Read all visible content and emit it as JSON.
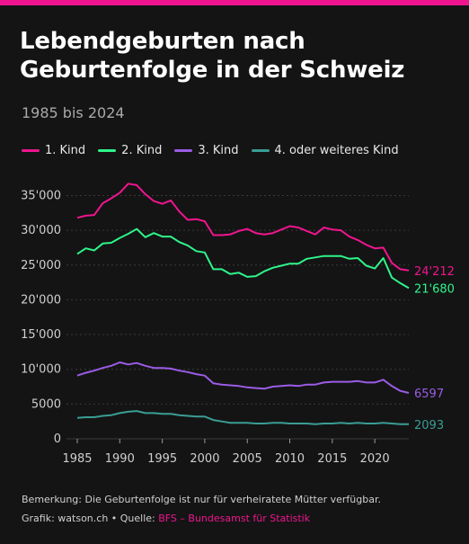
{
  "header": {
    "title": "Lebendgeburten nach Geburtenfolge in der Schweiz",
    "subtitle": "1985 bis 2024"
  },
  "colors": {
    "background": "#141414",
    "accent": "#f0158f",
    "grid": "#3a3a3a"
  },
  "footer": {
    "note": "Bemerkung: Die Geburtenfolge ist nur für verheiratete Mütter verfügbar.",
    "credit_prefix": "Grafik: watson.ch • Quelle: ",
    "source": "BFS – Bundesamst für Statistik"
  },
  "chart_data": {
    "type": "line",
    "title": "Lebendgeburten nach Geburtenfolge in der Schweiz",
    "subtitle": "1985 bis 2024",
    "xlabel": "",
    "ylabel": "",
    "xlim": [
      1985,
      2024
    ],
    "ylim": [
      0,
      37000
    ],
    "x_ticks": [
      1985,
      1990,
      1995,
      2000,
      2005,
      2010,
      2015,
      2020
    ],
    "y_ticks": [
      0,
      5000,
      10000,
      15000,
      20000,
      25000,
      30000,
      35000
    ],
    "y_tick_labels": [
      "0",
      "5000",
      "10'000",
      "15'000",
      "20'000",
      "25'000",
      "30'000",
      "35'000"
    ],
    "grid": "horizontal",
    "legend_position": "top",
    "x": [
      1985,
      1986,
      1987,
      1988,
      1989,
      1990,
      1991,
      1992,
      1993,
      1994,
      1995,
      1996,
      1997,
      1998,
      1999,
      2000,
      2001,
      2002,
      2003,
      2004,
      2005,
      2006,
      2007,
      2008,
      2009,
      2010,
      2011,
      2012,
      2013,
      2014,
      2015,
      2016,
      2017,
      2018,
      2019,
      2020,
      2021,
      2022,
      2023,
      2024
    ],
    "series": [
      {
        "name": "1. Kind",
        "color": "#f0158f",
        "end_label": "24'212",
        "values": [
          31800,
          32100,
          32200,
          33900,
          34600,
          35400,
          36700,
          36500,
          35200,
          34200,
          33800,
          34300,
          32700,
          31500,
          31600,
          31300,
          29300,
          29300,
          29400,
          29900,
          30200,
          29600,
          29400,
          29600,
          30100,
          30600,
          30400,
          29900,
          29400,
          30400,
          30100,
          30000,
          29100,
          28600,
          27900,
          27400,
          27500,
          25300,
          24400,
          24212
        ]
      },
      {
        "name": "2. Kind",
        "color": "#2ef58a",
        "end_label": "21'680",
        "values": [
          26600,
          27400,
          27100,
          28100,
          28200,
          28900,
          29500,
          30200,
          29000,
          29600,
          29100,
          29100,
          28300,
          27800,
          27000,
          26800,
          24400,
          24400,
          23700,
          23900,
          23300,
          23400,
          24100,
          24600,
          24900,
          25200,
          25200,
          25900,
          26100,
          26300,
          26300,
          26300,
          25900,
          26000,
          24900,
          24500,
          26000,
          23200,
          22400,
          21680
        ]
      },
      {
        "name": "3. Kind",
        "color": "#9b5ce6",
        "end_label": "6597",
        "values": [
          9100,
          9500,
          9800,
          10200,
          10500,
          11000,
          10700,
          10900,
          10500,
          10200,
          10200,
          10100,
          9800,
          9600,
          9300,
          9100,
          8000,
          7800,
          7700,
          7600,
          7400,
          7300,
          7200,
          7500,
          7600,
          7700,
          7600,
          7800,
          7800,
          8100,
          8200,
          8200,
          8200,
          8300,
          8100,
          8100,
          8500,
          7600,
          6900,
          6597
        ]
      },
      {
        "name": "4. oder weiteres Kind",
        "color": "#3a9d94",
        "end_label": "2093",
        "values": [
          3000,
          3100,
          3100,
          3300,
          3400,
          3700,
          3900,
          4000,
          3700,
          3700,
          3600,
          3600,
          3400,
          3300,
          3200,
          3200,
          2700,
          2500,
          2300,
          2300,
          2300,
          2200,
          2200,
          2300,
          2300,
          2200,
          2200,
          2200,
          2100,
          2200,
          2200,
          2300,
          2200,
          2300,
          2200,
          2200,
          2300,
          2200,
          2100,
          2093
        ]
      }
    ]
  }
}
